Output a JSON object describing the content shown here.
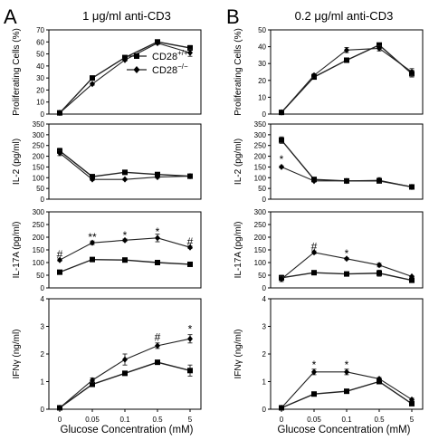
{
  "panel_labels": [
    "A",
    "B"
  ],
  "column_titles": [
    "1 μg/ml anti-CD3",
    "0.2 μg/ml anti-CD3"
  ],
  "xlabel": "Glucose Concentration (mM)",
  "colors": {
    "line": "#222222",
    "axis": "#000000",
    "frame": "#000000"
  },
  "legend": {
    "wt_base": "CD28",
    "wt_sup": "+/+",
    "ko_base": "CD28",
    "ko_sup": "−/−",
    "placement": "top-left inside first panel"
  },
  "chart_data": [
    {
      "type": "line",
      "column": 0,
      "row": 0,
      "categories": [
        "0",
        "0.05",
        "0.1",
        "0.5",
        "5"
      ],
      "ylabel": "Proliferating Cells (%)",
      "ylim": [
        0,
        70
      ],
      "yticks": [
        0,
        10,
        20,
        30,
        40,
        50,
        60,
        70
      ],
      "series": [
        {
          "name": "CD28+/+",
          "marker": "square",
          "values": [
            1,
            30,
            47,
            60,
            55
          ],
          "errors": [
            0,
            1,
            1,
            1,
            2
          ]
        },
        {
          "name": "CD28−/−",
          "marker": "diamond",
          "values": [
            1,
            25,
            45,
            59,
            51
          ],
          "errors": [
            0,
            1,
            1,
            1,
            3
          ]
        }
      ],
      "annotations": []
    },
    {
      "type": "line",
      "column": 0,
      "row": 1,
      "categories": [
        "0",
        "0.05",
        "0.1",
        "0.5",
        "5"
      ],
      "ylabel": "IL-2 (pg/ml)",
      "ylim": [
        0,
        350
      ],
      "yticks": [
        0,
        50,
        100,
        150,
        200,
        250,
        300,
        350
      ],
      "series": [
        {
          "name": "CD28+/+",
          "marker": "square",
          "values": [
            225,
            105,
            125,
            115,
            107
          ],
          "errors": [
            12,
            6,
            4,
            6,
            6
          ]
        },
        {
          "name": "CD28−/−",
          "marker": "diamond",
          "values": [
            215,
            92,
            92,
            103,
            107
          ],
          "errors": [
            12,
            5,
            4,
            5,
            6
          ]
        }
      ],
      "annotations": []
    },
    {
      "type": "line",
      "column": 0,
      "row": 2,
      "categories": [
        "0",
        "0.05",
        "0.1",
        "0.5",
        "5"
      ],
      "ylabel": "IL-17A (pg/ml)",
      "ylim": [
        0,
        300
      ],
      "yticks": [
        0,
        50,
        100,
        150,
        200,
        250,
        300
      ],
      "series": [
        {
          "name": "CD28+/+",
          "marker": "square",
          "values": [
            62,
            112,
            110,
            100,
            93
          ],
          "errors": [
            4,
            4,
            6,
            3,
            3
          ]
        },
        {
          "name": "CD28−/−",
          "marker": "diamond",
          "values": [
            110,
            178,
            188,
            197,
            160
          ],
          "errors": [
            5,
            7,
            5,
            15,
            5
          ]
        }
      ],
      "annotations": [
        {
          "index": 0,
          "text": "#",
          "y": 132
        },
        {
          "index": 1,
          "text": "**",
          "y": 200
        },
        {
          "index": 2,
          "text": "*",
          "y": 208
        },
        {
          "index": 3,
          "text": "*",
          "y": 222
        },
        {
          "index": 4,
          "text": "#",
          "y": 182
        }
      ]
    },
    {
      "type": "line",
      "column": 0,
      "row": 3,
      "categories": [
        "0",
        "0.05",
        "0.1",
        "0.5",
        "5"
      ],
      "ylabel": "IFNγ (ng/ml)",
      "ylim": [
        0,
        4
      ],
      "yticks": [
        0,
        1,
        2,
        3,
        4
      ],
      "series": [
        {
          "name": "CD28+/+",
          "marker": "square",
          "values": [
            0.05,
            0.9,
            1.3,
            1.7,
            1.4
          ],
          "errors": [
            0,
            0.08,
            0.05,
            0.07,
            0.2
          ]
        },
        {
          "name": "CD28−/−",
          "marker": "diamond",
          "values": [
            0.05,
            1.05,
            1.8,
            2.3,
            2.55
          ],
          "errors": [
            0,
            0.08,
            0.2,
            0.1,
            0.15
          ]
        }
      ],
      "annotations": [
        {
          "index": 3,
          "text": "#",
          "y": 2.6
        },
        {
          "index": 4,
          "text": "*",
          "y": 2.9
        }
      ]
    },
    {
      "type": "line",
      "column": 1,
      "row": 0,
      "categories": [
        "0",
        "0.05",
        "0.1",
        "0.5",
        "5"
      ],
      "ylabel": "Proliferating Cells (%)",
      "ylim": [
        0,
        50
      ],
      "yticks": [
        0,
        10,
        20,
        30,
        40,
        50
      ],
      "series": [
        {
          "name": "CD28+/+",
          "marker": "square",
          "values": [
            1,
            22,
            32,
            41,
            24
          ],
          "errors": [
            0,
            1,
            1,
            1,
            2
          ]
        },
        {
          "name": "CD28−/−",
          "marker": "diamond",
          "values": [
            1,
            23,
            38,
            39,
            25
          ],
          "errors": [
            0,
            1,
            1.5,
            1.5,
            2
          ]
        }
      ],
      "annotations": []
    },
    {
      "type": "line",
      "column": 1,
      "row": 1,
      "categories": [
        "0",
        "0.05",
        "0.1",
        "0.5",
        "5"
      ],
      "ylabel": "IL-2 (pg/ml)",
      "ylim": [
        0,
        350
      ],
      "yticks": [
        0,
        50,
        100,
        150,
        200,
        250,
        300,
        350
      ],
      "series": [
        {
          "name": "CD28+/+",
          "marker": "square",
          "values": [
            275,
            92,
            85,
            85,
            57
          ],
          "errors": [
            15,
            6,
            4,
            10,
            4
          ]
        },
        {
          "name": "CD28−/−",
          "marker": "diamond",
          "values": [
            150,
            85,
            85,
            88,
            57
          ],
          "errors": [
            5,
            5,
            4,
            12,
            4
          ]
        }
      ],
      "annotations": [
        {
          "index": 0,
          "text": "*",
          "y": 185
        }
      ]
    },
    {
      "type": "line",
      "column": 1,
      "row": 2,
      "categories": [
        "0",
        "0.05",
        "0.1",
        "0.5",
        "5"
      ],
      "ylabel": "IL-17A (pg/ml)",
      "ylim": [
        0,
        300
      ],
      "yticks": [
        0,
        50,
        100,
        150,
        200,
        250,
        300
      ],
      "series": [
        {
          "name": "CD28+/+",
          "marker": "square",
          "values": [
            40,
            60,
            55,
            58,
            30
          ],
          "errors": [
            10,
            4,
            4,
            12,
            3
          ]
        },
        {
          "name": "CD28−/−",
          "marker": "diamond",
          "values": [
            35,
            140,
            115,
            90,
            45
          ],
          "errors": [
            10,
            6,
            4,
            7,
            3
          ]
        }
      ],
      "annotations": [
        {
          "index": 1,
          "text": "#",
          "y": 162
        },
        {
          "index": 2,
          "text": "*",
          "y": 135
        }
      ]
    },
    {
      "type": "line",
      "column": 1,
      "row": 3,
      "categories": [
        "0",
        "0.05",
        "0.1",
        "0.5",
        "5"
      ],
      "ylabel": "IFNγ (ng/ml)",
      "ylim": [
        0,
        4
      ],
      "yticks": [
        0,
        1,
        2,
        3,
        4
      ],
      "series": [
        {
          "name": "CD28+/+",
          "marker": "square",
          "values": [
            0.05,
            0.55,
            0.65,
            1.0,
            0.2
          ],
          "errors": [
            0,
            0.05,
            0.05,
            0.05,
            0.03
          ]
        },
        {
          "name": "CD28−/−",
          "marker": "diamond",
          "values": [
            0.05,
            1.35,
            1.35,
            1.1,
            0.35
          ],
          "errors": [
            0,
            0.1,
            0.1,
            0.05,
            0.05
          ]
        }
      ],
      "annotations": [
        {
          "index": 1,
          "text": "*",
          "y": 1.6
        },
        {
          "index": 2,
          "text": "*",
          "y": 1.6
        }
      ]
    }
  ]
}
